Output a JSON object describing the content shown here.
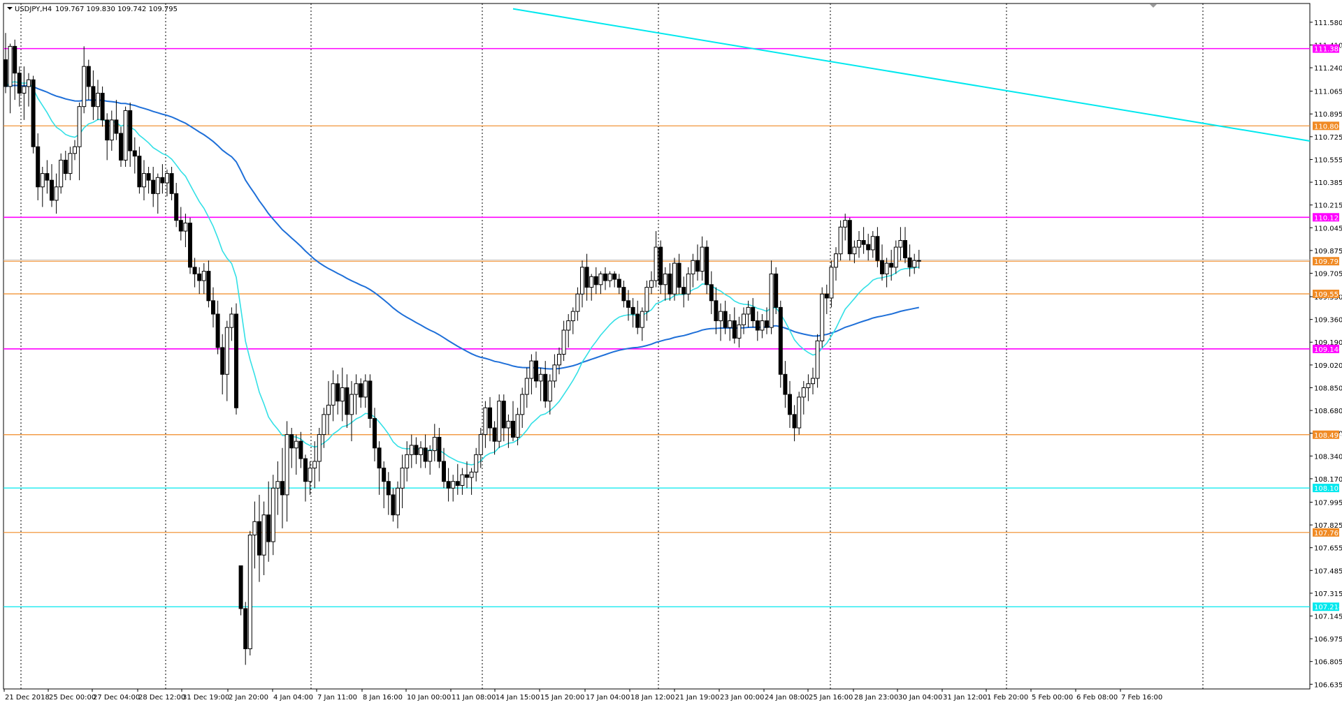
{
  "header": {
    "symbol": "USDJPY,H4",
    "ohlc": "109.767 109.830 109.742 109.795"
  },
  "colors": {
    "bull": "#ffffff",
    "bear": "#000000",
    "wick": "#000000",
    "ma_fast": "#33e0e6",
    "ma_slow": "#1e6fd8",
    "magenta": "#ff00ff",
    "orange": "#f08a24",
    "cyan": "#00e8ee",
    "grid": "#000000",
    "current": "#c8c8c8"
  },
  "chart_data": {
    "type": "candlestick",
    "xlabels": [
      "21 Dec 2018",
      "25 Dec 00:00",
      "27 Dec 04:00",
      "28 Dec 12:00",
      "31 Dec 19:00",
      "2 Jan 20:00",
      "4 Jan 04:00",
      "7 Jan 11:00",
      "8 Jan 16:00",
      "10 Jan 00:00",
      "11 Jan 08:00",
      "14 Jan 15:00",
      "15 Jan 20:00",
      "17 Jan 04:00",
      "18 Jan 12:00",
      "21 Jan 19:00",
      "23 Jan 00:00",
      "24 Jan 08:00",
      "25 Jan 16:00",
      "28 Jan 23:00",
      "30 Jan 04:00",
      "31 Jan 12:00",
      "1 Feb 20:00",
      "5 Feb 00:00",
      "6 Feb 08:00",
      "7 Feb 16:00"
    ],
    "yticks": [
      "111.580",
      "111.410",
      "111.240",
      "111.065",
      "110.895",
      "110.725",
      "110.555",
      "110.385",
      "110.215",
      "110.045",
      "109.875",
      "109.705",
      "109.530",
      "109.360",
      "109.190",
      "109.020",
      "108.850",
      "108.680",
      "108.510",
      "108.340",
      "108.170",
      "107.995",
      "107.825",
      "107.655",
      "107.485",
      "107.315",
      "107.145",
      "106.975",
      "106.805",
      "106.635"
    ],
    "ylim": [
      106.6,
      111.72
    ],
    "levels": [
      {
        "price": 111.383,
        "label": "111.383",
        "kind": "magenta"
      },
      {
        "price": 110.806,
        "label": "110.806",
        "kind": "orange"
      },
      {
        "price": 110.123,
        "label": "110.123",
        "kind": "magenta"
      },
      {
        "price": 109.795,
        "label": "109.795",
        "kind": "orange"
      },
      {
        "price": 109.551,
        "label": "109.551",
        "kind": "orange"
      },
      {
        "price": 109.14,
        "label": "109.140",
        "kind": "magenta"
      },
      {
        "price": 108.499,
        "label": "108.499",
        "kind": "orange"
      },
      {
        "price": 108.101,
        "label": "108.101",
        "kind": "cyan"
      },
      {
        "price": 107.769,
        "label": "107.769",
        "kind": "orange"
      },
      {
        "price": 107.214,
        "label": "107.214",
        "kind": "cyan"
      }
    ],
    "trendline": {
      "from": {
        "i": 110,
        "price": 111.68
      },
      "to": {
        "i": 250,
        "price": 110.88
      }
    },
    "candles": [
      [
        111.3,
        111.5,
        111.05,
        111.1
      ],
      [
        111.1,
        111.42,
        110.9,
        111.4
      ],
      [
        111.4,
        111.45,
        111.0,
        111.2
      ],
      [
        111.2,
        111.25,
        110.95,
        111.05
      ],
      [
        111.05,
        111.25,
        110.85,
        111.1
      ],
      [
        111.1,
        111.2,
        110.95,
        111.15
      ],
      [
        111.15,
        111.18,
        110.6,
        110.65
      ],
      [
        110.65,
        110.75,
        110.25,
        110.35
      ],
      [
        110.35,
        110.5,
        110.2,
        110.45
      ],
      [
        110.45,
        110.55,
        110.3,
        110.4
      ],
      [
        110.4,
        110.52,
        110.2,
        110.25
      ],
      [
        110.25,
        110.45,
        110.15,
        110.35
      ],
      [
        110.35,
        110.6,
        110.3,
        110.55
      ],
      [
        110.55,
        110.62,
        110.4,
        110.45
      ],
      [
        110.45,
        110.65,
        110.4,
        110.6
      ],
      [
        110.6,
        110.7,
        110.55,
        110.65
      ],
      [
        110.65,
        110.98,
        110.4,
        110.95
      ],
      [
        110.95,
        111.4,
        110.9,
        111.25
      ],
      [
        111.25,
        111.3,
        111.0,
        111.1
      ],
      [
        111.1,
        111.22,
        110.85,
        110.95
      ],
      [
        110.95,
        111.15,
        110.85,
        111.05
      ],
      [
        111.05,
        111.1,
        110.8,
        110.85
      ],
      [
        110.85,
        110.9,
        110.55,
        110.7
      ],
      [
        110.7,
        110.92,
        110.62,
        110.85
      ],
      [
        110.85,
        111.0,
        110.7,
        110.75
      ],
      [
        110.75,
        110.8,
        110.5,
        110.55
      ],
      [
        110.55,
        110.95,
        110.5,
        110.92
      ],
      [
        110.92,
        110.98,
        110.5,
        110.62
      ],
      [
        110.62,
        110.72,
        110.45,
        110.58
      ],
      [
        110.58,
        110.65,
        110.3,
        110.35
      ],
      [
        110.35,
        110.55,
        110.25,
        110.45
      ],
      [
        110.45,
        110.5,
        110.3,
        110.4
      ],
      [
        110.4,
        110.5,
        110.2,
        110.3
      ],
      [
        110.3,
        110.45,
        110.15,
        110.42
      ],
      [
        110.42,
        110.52,
        110.3,
        110.38
      ],
      [
        110.38,
        110.48,
        110.28,
        110.45
      ],
      [
        110.45,
        110.5,
        110.25,
        110.3
      ],
      [
        110.3,
        110.38,
        110.05,
        110.1
      ],
      [
        110.1,
        110.2,
        109.95,
        110.02
      ],
      [
        110.02,
        110.15,
        109.9,
        110.08
      ],
      [
        110.08,
        110.12,
        109.7,
        109.75
      ],
      [
        109.75,
        109.82,
        109.6,
        109.7
      ],
      [
        109.7,
        109.75,
        109.55,
        109.65
      ],
      [
        109.65,
        109.78,
        109.55,
        109.72
      ],
      [
        109.72,
        109.8,
        109.45,
        109.5
      ],
      [
        109.5,
        109.6,
        109.3,
        109.4
      ],
      [
        109.4,
        109.5,
        109.1,
        109.15
      ],
      [
        109.15,
        109.25,
        108.8,
        108.95
      ],
      [
        108.95,
        109.35,
        108.75,
        109.3
      ],
      [
        109.3,
        109.45,
        109.2,
        109.4
      ],
      [
        109.4,
        109.48,
        108.65,
        108.7
      ],
      [
        107.52,
        107.52,
        107.15,
        107.2
      ],
      [
        107.2,
        107.25,
        106.78,
        106.9
      ],
      [
        106.9,
        107.78,
        106.85,
        107.75
      ],
      [
        107.75,
        108.0,
        107.5,
        107.85
      ],
      [
        107.85,
        108.05,
        107.4,
        107.6
      ],
      [
        107.6,
        108.0,
        107.45,
        107.9
      ],
      [
        107.9,
        108.15,
        107.55,
        107.7
      ],
      [
        107.7,
        108.2,
        107.6,
        108.1
      ],
      [
        108.1,
        108.3,
        107.9,
        108.15
      ],
      [
        108.15,
        108.4,
        107.8,
        108.05
      ],
      [
        108.05,
        108.6,
        107.85,
        108.5
      ],
      [
        108.5,
        108.55,
        108.25,
        108.4
      ],
      [
        108.4,
        108.5,
        108.2,
        108.45
      ],
      [
        108.45,
        108.52,
        108.25,
        108.32
      ],
      [
        108.32,
        108.35,
        108.0,
        108.15
      ],
      [
        108.15,
        108.3,
        108.05,
        108.25
      ],
      [
        108.25,
        108.45,
        108.1,
        108.3
      ],
      [
        108.3,
        108.55,
        108.15,
        108.5
      ],
      [
        108.5,
        108.7,
        108.4,
        108.65
      ],
      [
        108.65,
        108.9,
        108.5,
        108.72
      ],
      [
        108.72,
        108.98,
        108.6,
        108.88
      ],
      [
        108.88,
        108.95,
        108.65,
        108.75
      ],
      [
        108.75,
        109.0,
        108.6,
        108.85
      ],
      [
        108.85,
        108.95,
        108.55,
        108.65
      ],
      [
        108.65,
        108.9,
        108.45,
        108.8
      ],
      [
        108.8,
        108.95,
        108.65,
        108.88
      ],
      [
        108.88,
        108.92,
        108.7,
        108.78
      ],
      [
        108.78,
        108.95,
        108.7,
        108.9
      ],
      [
        108.9,
        108.95,
        108.55,
        108.62
      ],
      [
        108.62,
        108.7,
        108.3,
        108.4
      ],
      [
        108.4,
        108.45,
        108.05,
        108.25
      ],
      [
        108.25,
        108.3,
        107.95,
        108.15
      ],
      [
        108.15,
        108.22,
        107.9,
        108.05
      ],
      [
        108.05,
        108.1,
        107.85,
        107.9
      ],
      [
        107.9,
        108.15,
        107.8,
        108.1
      ],
      [
        108.1,
        108.35,
        107.95,
        108.25
      ],
      [
        108.25,
        108.45,
        108.15,
        108.35
      ],
      [
        108.35,
        108.5,
        108.25,
        108.42
      ],
      [
        108.42,
        108.48,
        108.28,
        108.35
      ],
      [
        108.35,
        108.45,
        108.25,
        108.4
      ],
      [
        108.4,
        108.5,
        108.25,
        108.3
      ],
      [
        108.3,
        108.42,
        108.2,
        108.38
      ],
      [
        108.38,
        108.58,
        108.3,
        108.48
      ],
      [
        108.48,
        108.55,
        108.25,
        108.3
      ],
      [
        108.3,
        108.4,
        108.1,
        108.15
      ],
      [
        108.15,
        108.25,
        108.0,
        108.1
      ],
      [
        108.1,
        108.2,
        108.0,
        108.15
      ],
      [
        108.15,
        108.28,
        108.05,
        108.12
      ],
      [
        108.12,
        108.25,
        108.05,
        108.2
      ],
      [
        108.2,
        108.3,
        108.1,
        108.18
      ],
      [
        108.18,
        108.25,
        108.05,
        108.22
      ],
      [
        108.22,
        108.4,
        108.15,
        108.35
      ],
      [
        108.35,
        108.55,
        108.25,
        108.5
      ],
      [
        108.5,
        108.75,
        108.4,
        108.7
      ],
      [
        108.7,
        108.78,
        108.45,
        108.55
      ],
      [
        108.55,
        108.6,
        108.35,
        108.45
      ],
      [
        108.45,
        108.8,
        108.4,
        108.75
      ],
      [
        108.75,
        108.8,
        108.45,
        108.55
      ],
      [
        108.55,
        108.65,
        108.4,
        108.6
      ],
      [
        108.6,
        108.75,
        108.45,
        108.48
      ],
      [
        108.48,
        108.7,
        108.42,
        108.65
      ],
      [
        108.65,
        108.85,
        108.55,
        108.8
      ],
      [
        108.8,
        109.0,
        108.7,
        108.92
      ],
      [
        108.92,
        109.1,
        108.8,
        109.05
      ],
      [
        109.05,
        109.12,
        108.85,
        108.9
      ],
      [
        108.9,
        109.0,
        108.75,
        108.95
      ],
      [
        108.95,
        109.05,
        108.7,
        108.75
      ],
      [
        108.75,
        108.95,
        108.65,
        108.9
      ],
      [
        108.9,
        109.1,
        108.85,
        109.02
      ],
      [
        109.02,
        109.15,
        108.95,
        109.1
      ],
      [
        109.1,
        109.35,
        109.05,
        109.28
      ],
      [
        109.28,
        109.4,
        109.15,
        109.35
      ],
      [
        109.35,
        109.45,
        109.25,
        109.42
      ],
      [
        109.42,
        109.6,
        109.35,
        109.55
      ],
      [
        109.55,
        109.8,
        109.45,
        109.75
      ],
      [
        109.75,
        109.85,
        109.5,
        109.6
      ],
      [
        109.6,
        109.7,
        109.5,
        109.68
      ],
      [
        109.68,
        109.75,
        109.55,
        109.62
      ],
      [
        109.62,
        109.72,
        109.55,
        109.7
      ],
      [
        109.7,
        109.75,
        109.58,
        109.65
      ],
      [
        109.65,
        109.72,
        109.6,
        109.7
      ],
      [
        109.7,
        109.72,
        109.6,
        109.66
      ],
      [
        109.66,
        109.7,
        109.55,
        109.6
      ],
      [
        109.6,
        109.65,
        109.45,
        109.5
      ],
      [
        109.5,
        109.58,
        109.35,
        109.45
      ],
      [
        109.45,
        109.52,
        109.3,
        109.4
      ],
      [
        109.4,
        109.5,
        109.25,
        109.3
      ],
      [
        109.3,
        109.45,
        109.2,
        109.42
      ],
      [
        109.42,
        109.65,
        109.35,
        109.6
      ],
      [
        109.6,
        109.72,
        109.55,
        109.65
      ],
      [
        109.65,
        110.02,
        109.6,
        109.9
      ],
      [
        109.9,
        109.95,
        109.55,
        109.62
      ],
      [
        109.62,
        109.75,
        109.5,
        109.7
      ],
      [
        109.7,
        109.78,
        109.5,
        109.55
      ],
      [
        109.55,
        109.82,
        109.5,
        109.78
      ],
      [
        109.78,
        109.85,
        109.55,
        109.6
      ],
      [
        109.6,
        109.68,
        109.45,
        109.55
      ],
      [
        109.55,
        109.75,
        109.5,
        109.7
      ],
      [
        109.7,
        109.85,
        109.6,
        109.8
      ],
      [
        109.8,
        109.92,
        109.65,
        109.72
      ],
      [
        109.72,
        109.98,
        109.65,
        109.9
      ],
      [
        109.9,
        109.95,
        109.55,
        109.62
      ],
      [
        109.62,
        109.72,
        109.4,
        109.5
      ],
      [
        109.5,
        109.6,
        109.25,
        109.35
      ],
      [
        109.35,
        109.48,
        109.2,
        109.42
      ],
      [
        109.42,
        109.5,
        109.25,
        109.3
      ],
      [
        109.3,
        109.4,
        109.2,
        109.35
      ],
      [
        109.35,
        109.45,
        109.18,
        109.22
      ],
      [
        109.22,
        109.38,
        109.15,
        109.32
      ],
      [
        109.32,
        109.45,
        109.25,
        109.4
      ],
      [
        109.4,
        109.5,
        109.3,
        109.45
      ],
      [
        109.45,
        109.52,
        109.3,
        109.35
      ],
      [
        109.35,
        109.42,
        109.2,
        109.28
      ],
      [
        109.28,
        109.4,
        109.22,
        109.35
      ],
      [
        109.35,
        109.45,
        109.25,
        109.3
      ],
      [
        109.3,
        109.8,
        109.25,
        109.7
      ],
      [
        109.7,
        109.75,
        109.4,
        109.45
      ],
      [
        109.45,
        109.5,
        108.85,
        108.95
      ],
      [
        108.95,
        109.05,
        108.7,
        108.8
      ],
      [
        108.8,
        108.9,
        108.55,
        108.65
      ],
      [
        108.65,
        108.72,
        108.45,
        108.55
      ],
      [
        108.55,
        108.82,
        108.5,
        108.78
      ],
      [
        108.78,
        108.9,
        108.65,
        108.85
      ],
      [
        108.85,
        108.95,
        108.75,
        108.88
      ],
      [
        108.88,
        109.0,
        108.8,
        108.92
      ],
      [
        108.92,
        109.25,
        108.85,
        109.2
      ],
      [
        109.2,
        109.6,
        109.15,
        109.55
      ],
      [
        109.55,
        109.62,
        109.4,
        109.52
      ],
      [
        109.52,
        109.8,
        109.45,
        109.75
      ],
      [
        109.75,
        109.9,
        109.65,
        109.85
      ],
      [
        109.85,
        110.1,
        109.8,
        110.05
      ],
      [
        110.05,
        110.15,
        109.95,
        110.1
      ],
      [
        110.1,
        110.12,
        109.8,
        109.85
      ],
      [
        109.85,
        109.95,
        109.78,
        109.9
      ],
      [
        109.9,
        110.02,
        109.82,
        109.95
      ],
      [
        109.95,
        110.05,
        109.85,
        109.92
      ],
      [
        109.92,
        110.0,
        109.8,
        109.88
      ],
      [
        109.88,
        110.02,
        109.82,
        109.98
      ],
      [
        109.98,
        110.05,
        109.75,
        109.8
      ],
      [
        109.8,
        109.92,
        109.65,
        109.7
      ],
      [
        109.7,
        109.82,
        109.6,
        109.78
      ],
      [
        109.78,
        109.88,
        109.65,
        109.75
      ],
      [
        109.75,
        109.95,
        109.7,
        109.9
      ],
      [
        109.9,
        110.05,
        109.8,
        109.95
      ],
      [
        109.95,
        110.05,
        109.78,
        109.82
      ],
      [
        109.82,
        109.92,
        109.68,
        109.75
      ],
      [
        109.75,
        109.85,
        109.7,
        109.8
      ],
      [
        109.8,
        109.88,
        109.74,
        109.795
      ]
    ],
    "ma_fast": {
      "period": 20
    },
    "ma_slow": {
      "period": 100
    }
  }
}
